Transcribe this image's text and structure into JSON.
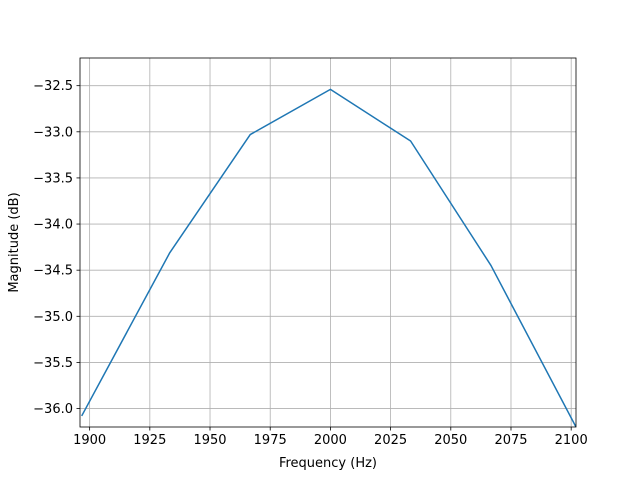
{
  "chart_data": {
    "type": "line",
    "xlabel": "Frequency (Hz)",
    "ylabel": "Magnitude (dB)",
    "xlim": [
      1896,
      2102
    ],
    "ylim": [
      -36.2,
      -32.2
    ],
    "xticks": [
      1900,
      1925,
      1950,
      1975,
      2000,
      2025,
      2050,
      2075,
      2100
    ],
    "yticks": [
      -36.0,
      -35.5,
      -35.0,
      -34.5,
      -34.0,
      -33.5,
      -33.0,
      -32.5
    ],
    "xtick_labels": [
      "1900",
      "1925",
      "1950",
      "1975",
      "2000",
      "2025",
      "2050",
      "2075",
      "2100"
    ],
    "ytick_labels": [
      "−36.0",
      "−35.5",
      "−35.0",
      "−34.5",
      "−34.0",
      "−33.5",
      "−33.0",
      "−32.5"
    ],
    "grid": true,
    "series": [
      {
        "color": "#1f77b4",
        "x": [
          1896.7,
          1933.3,
          1966.7,
          2000.0,
          2033.3,
          2066.7,
          2102.0
        ],
        "y": [
          -36.08,
          -34.31,
          -33.03,
          -32.54,
          -33.1,
          -34.45,
          -36.2
        ]
      }
    ]
  }
}
